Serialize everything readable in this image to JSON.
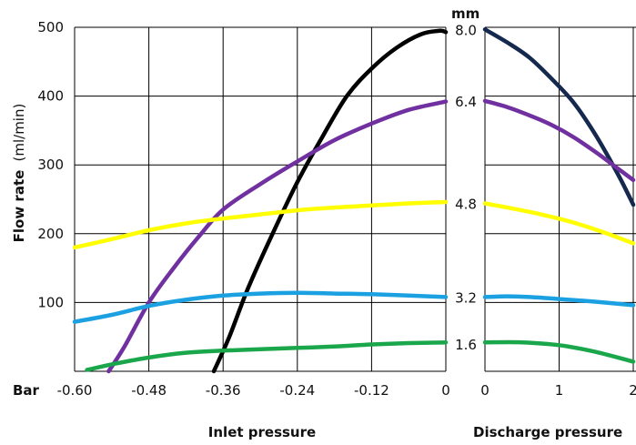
{
  "chart_data": [
    {
      "type": "line",
      "xlabel": "Inlet pressure",
      "ylabel_bold": "Flow rate",
      "ylabel_unit": "(ml/min)",
      "unit_prefix": "Bar",
      "ylim": [
        0,
        500
      ],
      "xlim": [
        -0.6,
        0
      ],
      "x_ticks": [
        "-0.60",
        "-0.48",
        "-0.36",
        "-0.24",
        "-0.12",
        "0"
      ],
      "y_ticks": [
        "100",
        "200",
        "300",
        "400",
        "500"
      ],
      "grid": true,
      "series": [
        {
          "color": "#000000",
          "points": [
            [
              -0.375,
              0
            ],
            [
              -0.35,
              50
            ],
            [
              -0.32,
              120
            ],
            [
              -0.28,
              200
            ],
            [
              -0.24,
              275
            ],
            [
              -0.2,
              340
            ],
            [
              -0.16,
              400
            ],
            [
              -0.12,
              440
            ],
            [
              -0.08,
              470
            ],
            [
              -0.04,
              490
            ],
            [
              -0.01,
              495
            ],
            [
              0,
              493
            ]
          ]
        },
        {
          "color": "#7030a0",
          "points": [
            [
              -0.545,
              0
            ],
            [
              -0.52,
              35
            ],
            [
              -0.48,
              100
            ],
            [
              -0.44,
              150
            ],
            [
              -0.4,
              195
            ],
            [
              -0.36,
              235
            ],
            [
              -0.3,
              272
            ],
            [
              -0.24,
              305
            ],
            [
              -0.18,
              336
            ],
            [
              -0.12,
              360
            ],
            [
              -0.06,
              380
            ],
            [
              0,
              392
            ]
          ]
        },
        {
          "color": "#ffff00",
          "points": [
            [
              -0.6,
              180
            ],
            [
              -0.54,
              192
            ],
            [
              -0.48,
              205
            ],
            [
              -0.42,
              215
            ],
            [
              -0.36,
              222
            ],
            [
              -0.3,
              228
            ],
            [
              -0.24,
              234
            ],
            [
              -0.18,
              238
            ],
            [
              -0.12,
              241
            ],
            [
              -0.06,
              244
            ],
            [
              0,
              246
            ]
          ]
        },
        {
          "color": "#1ba1e2",
          "points": [
            [
              -0.6,
              72
            ],
            [
              -0.54,
              82
            ],
            [
              -0.48,
              95
            ],
            [
              -0.42,
              104
            ],
            [
              -0.36,
              110
            ],
            [
              -0.3,
              113
            ],
            [
              -0.24,
              114
            ],
            [
              -0.18,
              113
            ],
            [
              -0.12,
              112
            ],
            [
              -0.06,
              110
            ],
            [
              0,
              108
            ]
          ]
        },
        {
          "color": "#1aa64a",
          "points": [
            [
              -0.58,
              2
            ],
            [
              -0.54,
              10
            ],
            [
              -0.48,
              20
            ],
            [
              -0.42,
              27
            ],
            [
              -0.36,
              30
            ],
            [
              -0.3,
              32
            ],
            [
              -0.24,
              34
            ],
            [
              -0.18,
              36
            ],
            [
              -0.12,
              39
            ],
            [
              -0.06,
              41
            ],
            [
              0,
              42
            ]
          ]
        }
      ]
    },
    {
      "type": "line",
      "xlabel": "Discharge pressure",
      "xlim": [
        0,
        2
      ],
      "ylim": [
        0,
        500
      ],
      "x_ticks": [
        "0",
        "1",
        "2"
      ],
      "grid": true,
      "size_unit": "mm",
      "size_labels": [
        {
          "label": "8.0",
          "value": 497
        },
        {
          "label": "6.4",
          "value": 393
        },
        {
          "label": "4.8",
          "value": 244
        },
        {
          "label": "3.2",
          "value": 108
        },
        {
          "label": "1.6",
          "value": 40
        }
      ],
      "series": [
        {
          "color": "#15294f",
          "points": [
            [
              0,
              497
            ],
            [
              0.3,
              478
            ],
            [
              0.6,
              456
            ],
            [
              0.9,
              425
            ],
            [
              1.2,
              390
            ],
            [
              1.5,
              342
            ],
            [
              1.8,
              285
            ],
            [
              2,
              242
            ]
          ]
        },
        {
          "color": "#7030a0",
          "points": [
            [
              0,
              393
            ],
            [
              0.3,
              384
            ],
            [
              0.6,
              372
            ],
            [
              0.9,
              358
            ],
            [
              1.2,
              340
            ],
            [
              1.5,
              318
            ],
            [
              1.8,
              294
            ],
            [
              2,
              278
            ]
          ]
        },
        {
          "color": "#ffff00",
          "points": [
            [
              0,
              244
            ],
            [
              0.4,
              236
            ],
            [
              0.8,
              227
            ],
            [
              1.2,
              216
            ],
            [
              1.6,
              202
            ],
            [
              2,
              186
            ]
          ]
        },
        {
          "color": "#1ba1e2",
          "points": [
            [
              0,
              108
            ],
            [
              0.3,
              109
            ],
            [
              0.6,
              108
            ],
            [
              1,
              105
            ],
            [
              1.5,
              101
            ],
            [
              2,
              96
            ]
          ]
        },
        {
          "color": "#1aa64a",
          "points": [
            [
              0,
              42
            ],
            [
              0.5,
              42
            ],
            [
              1,
              38
            ],
            [
              1.5,
              28
            ],
            [
              2,
              14
            ]
          ]
        }
      ]
    }
  ]
}
